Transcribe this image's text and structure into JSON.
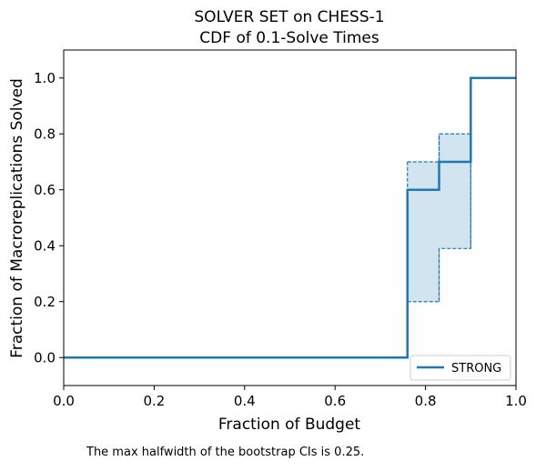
{
  "chart_data": {
    "type": "line",
    "title": [
      "SOLVER SET on CHESS-1",
      "CDF of 0.1-Solve Times"
    ],
    "xlabel": "Fraction of Budget",
    "ylabel": "Fraction of Macroreplications Solved",
    "xlim": [
      0.0,
      1.0
    ],
    "ylim": [
      -0.1,
      1.1
    ],
    "xticks": [
      0.0,
      0.2,
      0.4,
      0.6,
      0.8,
      1.0
    ],
    "xtick_labels": [
      "0.0",
      "0.2",
      "0.4",
      "0.6",
      "0.8",
      "1.0"
    ],
    "yticks": [
      0.0,
      0.2,
      0.4,
      0.6,
      0.8,
      1.0
    ],
    "ytick_labels": [
      "0.0",
      "0.2",
      "0.4",
      "0.6",
      "0.8",
      "1.0"
    ],
    "grid": false,
    "legend_position": "lower-right",
    "series": [
      {
        "name": "STRONG",
        "color": "#1f77b4",
        "style": "step",
        "x": [
          0.0,
          0.76,
          0.76,
          0.83,
          0.83,
          0.9,
          0.9,
          1.0
        ],
        "y": [
          0.0,
          0.0,
          0.6,
          0.6,
          0.7,
          0.7,
          1.0,
          1.0
        ]
      }
    ],
    "confidence_band": {
      "color": "#1f77b4",
      "fill_opacity": 0.2,
      "x": [
        0.76,
        0.83,
        0.9
      ],
      "upper": [
        0.7,
        0.8,
        1.0
      ],
      "lower": [
        0.2,
        0.39,
        1.0
      ]
    },
    "footnote": "The max halfwidth of the bootstrap CIs is 0.25."
  }
}
